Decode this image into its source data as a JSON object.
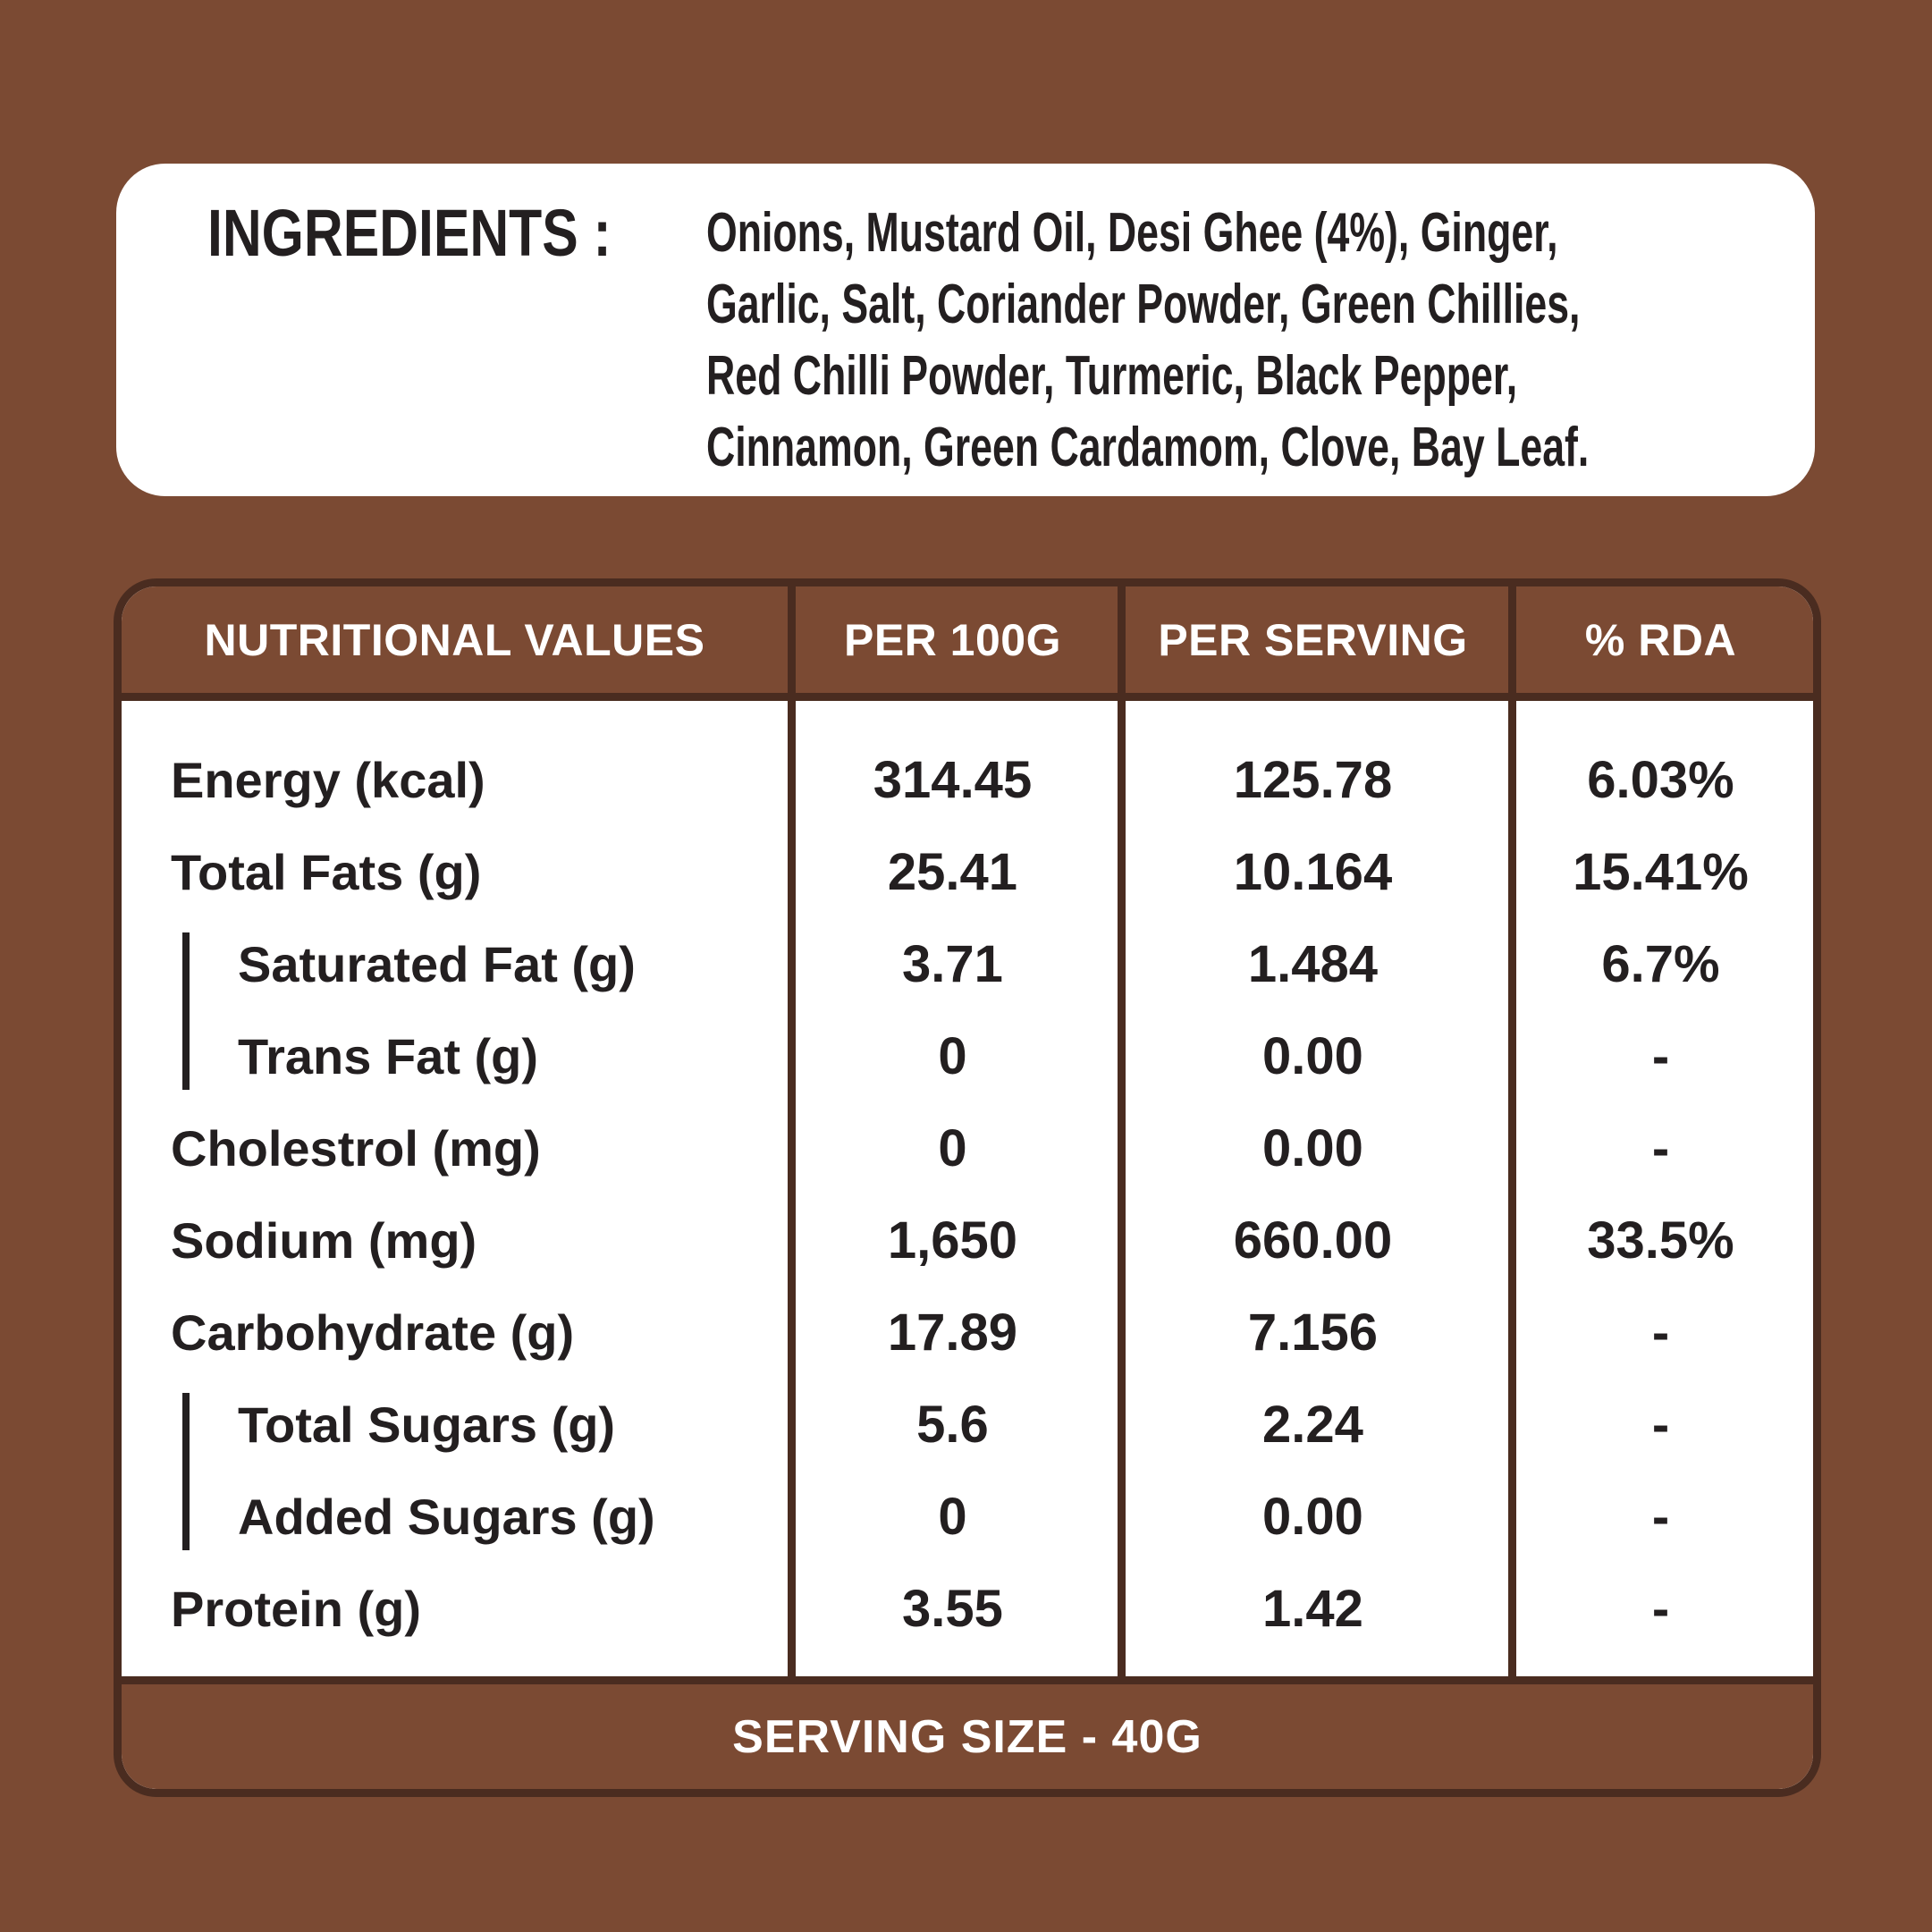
{
  "colors": {
    "background": "#7B4A33",
    "rule_dark": "#4A2C20",
    "panel": "#FFFFFF",
    "text_dark": "#231F20",
    "text_light": "#FFFFFF"
  },
  "ingredients": {
    "label": "INGREDIENTS :",
    "lines": [
      "Onions, Mustard Oil, Desi Ghee (4%), Ginger,",
      "Garlic, Salt, Coriander Powder, Green Chillies,",
      "Red Chilli Powder, Turmeric, Black Pepper,",
      "Cinnamon, Green Cardamom, Clove, Bay Leaf."
    ]
  },
  "nutrition": {
    "headers": {
      "values": "NUTRITIONAL VALUES",
      "per_100g": "PER 100G",
      "per_serving": "PER SERVING",
      "rda": "% RDA"
    },
    "rows": [
      {
        "label": "Energy (kcal)",
        "sub": false,
        "per_100g": "314.45",
        "per_serving": "125.78",
        "rda": "6.03%"
      },
      {
        "label": "Total Fats (g)",
        "sub": false,
        "per_100g": "25.41",
        "per_serving": "10.164",
        "rda": "15.41%"
      },
      {
        "label": "Saturated Fat (g)",
        "sub": true,
        "per_100g": "3.71",
        "per_serving": "1.484",
        "rda": "6.7%"
      },
      {
        "label": "Trans Fat (g)",
        "sub": true,
        "per_100g": "0",
        "per_serving": "0.00",
        "rda": "-"
      },
      {
        "label": "Cholestrol (mg)",
        "sub": false,
        "per_100g": "0",
        "per_serving": "0.00",
        "rda": "-"
      },
      {
        "label": "Sodium (mg)",
        "sub": false,
        "per_100g": "1,650",
        "per_serving": "660.00",
        "rda": "33.5%"
      },
      {
        "label": "Carbohydrate (g)",
        "sub": false,
        "per_100g": "17.89",
        "per_serving": "7.156",
        "rda": "-"
      },
      {
        "label": "Total Sugars (g)",
        "sub": true,
        "per_100g": "5.6",
        "per_serving": "2.24",
        "rda": "-"
      },
      {
        "label": "Added Sugars (g)",
        "sub": true,
        "per_100g": "0",
        "per_serving": "0.00",
        "rda": "-"
      },
      {
        "label": "Protein (g)",
        "sub": false,
        "per_100g": "3.55",
        "per_serving": "1.42",
        "rda": "-"
      }
    ],
    "footer": "SERVING SIZE - 40G"
  }
}
